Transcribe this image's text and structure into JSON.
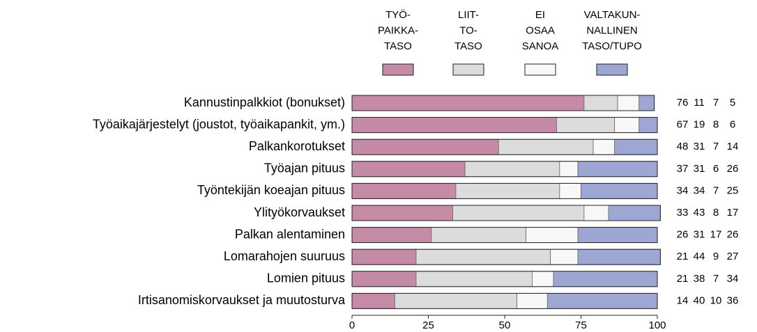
{
  "chart_data": {
    "type": "bar",
    "orientation": "horizontal",
    "stacked": true,
    "categories": [
      "Kannustinpalkkiot (bonukset)",
      "Työaikajärjestelyt (joustot, työaikapankit, ym.)",
      "Palkankorotukset",
      "Työajan pituus",
      "Työntekijän koeajan pituus",
      "Ylityökorvaukset",
      "Palkan alentaminen",
      "Lomarahojen suuruus",
      "Lomien pituus",
      "Irtisanomiskorvaukset ja muutosturva"
    ],
    "series": [
      {
        "name": "TYÖ-\nPAIKKA-\nTASO",
        "color": "#c48aa6",
        "values": [
          76,
          67,
          48,
          37,
          34,
          33,
          26,
          21,
          21,
          14
        ]
      },
      {
        "name": "LIIT-\nTO-\nTASO",
        "color": "#dcdcdc",
        "values": [
          11,
          19,
          31,
          31,
          34,
          43,
          31,
          44,
          38,
          40
        ]
      },
      {
        "name": "EI\nOSAA\nSANOA",
        "color": "#f8f8f8",
        "values": [
          7,
          8,
          7,
          6,
          7,
          8,
          17,
          9,
          7,
          10
        ]
      },
      {
        "name": "VALTAKUN-\nNALLINEN\nTASO/TUPO",
        "color": "#9ea6d4",
        "values": [
          5,
          6,
          14,
          26,
          25,
          17,
          26,
          27,
          34,
          36
        ]
      }
    ],
    "xlim": [
      0,
      100
    ],
    "xticks": [
      0,
      25,
      50,
      75,
      100
    ]
  }
}
